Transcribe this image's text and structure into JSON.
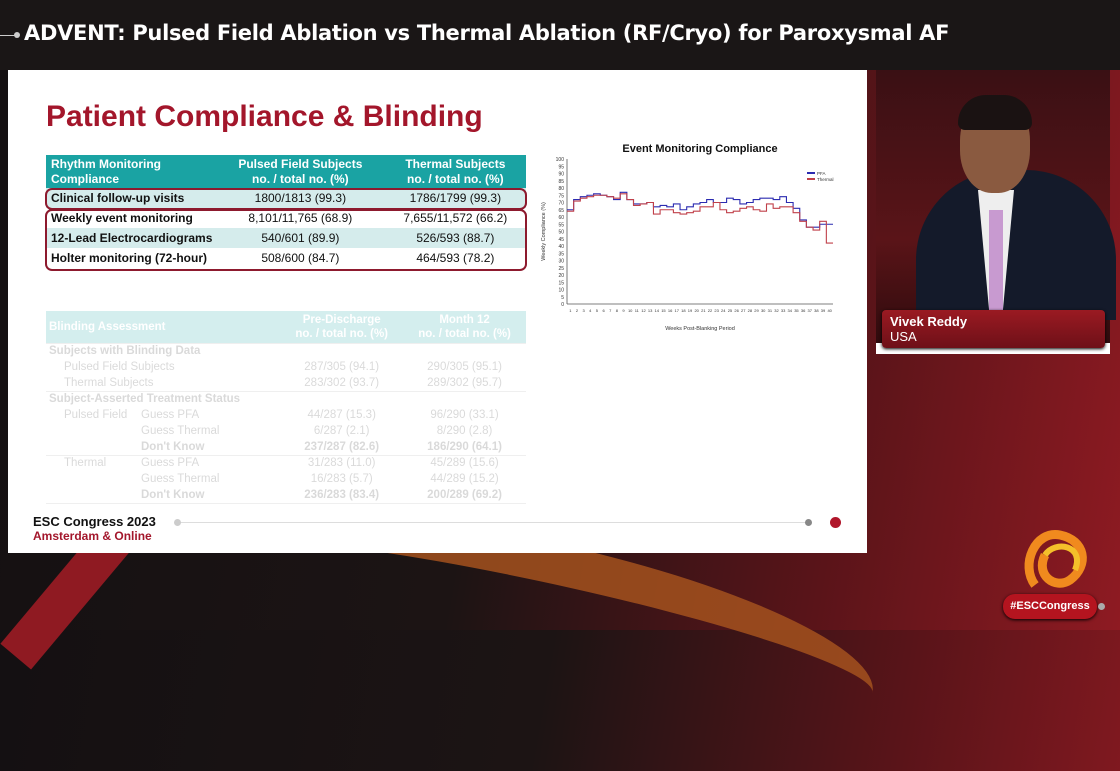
{
  "header": {
    "title": "ADVENT: Pulsed Field Ablation vs Thermal Ablation (RF/Cryo) for Paroxysmal AF"
  },
  "slide": {
    "title": "Patient Compliance & Blinding",
    "compliance_table": {
      "headers": [
        [
          "Rhythm Monitoring",
          "Compliance"
        ],
        [
          "Pulsed Field Subjects",
          "no. / total no. (%)"
        ],
        [
          "Thermal Subjects",
          "no. / total no. (%)"
        ]
      ],
      "rows": [
        [
          "Clinical follow-up visits",
          "1800/1813 (99.3)",
          "1786/1799 (99.3)"
        ],
        [
          "Weekly event monitoring",
          "8,101/11,765 (68.9)",
          "7,655/11,572 (66.2)"
        ],
        [
          "12-Lead Electrocardiograms",
          "540/601 (89.9)",
          "526/593 (88.7)"
        ],
        [
          "Holter monitoring (72-hour)",
          "508/600 (84.7)",
          "464/593 (78.2)"
        ]
      ]
    },
    "blinding_table": {
      "headers": [
        "Blinding Assessment",
        [
          "Pre-Discharge",
          "no. / total no. (%)"
        ],
        [
          "Month 12",
          "no. / total no. (%)"
        ]
      ],
      "section1": "Subjects with Blinding Data",
      "s1rows": [
        [
          "Pulsed Field Subjects",
          "287/305 (94.1)",
          "290/305 (95.1)"
        ],
        [
          "Thermal Subjects",
          "283/302 (93.7)",
          "289/302 (95.7)"
        ]
      ],
      "section2": "Subject-Asserted Treatment Status",
      "groups": [
        {
          "name": "Pulsed Field",
          "rows": [
            [
              "Guess PFA",
              "44/287 (15.3)",
              "96/290 (33.1)"
            ],
            [
              "Guess Thermal",
              "6/287 (2.1)",
              "8/290 (2.8)"
            ],
            [
              "Don't Know",
              "237/287 (82.6)",
              "186/290 (64.1)"
            ]
          ]
        },
        {
          "name": "Thermal",
          "rows": [
            [
              "Guess PFA",
              "31/283 (11.0)",
              "45/289 (15.6)"
            ],
            [
              "Guess Thermal",
              "16/283 (5.7)",
              "44/289 (15.2)"
            ],
            [
              "Don't Know",
              "236/283 (83.4)",
              "200/289 (69.2)"
            ]
          ]
        }
      ]
    },
    "footer": {
      "line1": "ESC Congress 2023",
      "line2": "Amsterdam & Online"
    }
  },
  "chart_data": {
    "type": "line",
    "title": "Event Monitoring Compliance",
    "xlabel": "Weeks Post-Blanking Period",
    "ylabel": "Weekly Compliance (%)",
    "ylim": [
      0,
      100
    ],
    "yticks": [
      0,
      5,
      10,
      15,
      20,
      25,
      30,
      35,
      40,
      45,
      50,
      55,
      60,
      65,
      70,
      75,
      80,
      85,
      90,
      95,
      100
    ],
    "x": [
      1,
      2,
      3,
      4,
      5,
      6,
      7,
      8,
      9,
      10,
      11,
      12,
      13,
      14,
      15,
      16,
      17,
      18,
      19,
      20,
      21,
      22,
      23,
      24,
      25,
      26,
      27,
      28,
      29,
      30,
      31,
      32,
      33,
      34,
      35,
      36,
      37,
      38,
      39,
      40
    ],
    "legend": "top-right",
    "step": true,
    "series": [
      {
        "name": "PFA",
        "color": "#2b2bb0",
        "values": [
          65,
          72,
          74,
          75,
          76,
          75,
          74,
          72,
          77,
          72,
          69,
          69,
          70,
          67,
          68,
          67,
          69,
          65,
          67,
          69,
          70,
          72,
          70,
          70,
          73,
          72,
          69,
          70,
          72,
          73,
          73,
          72,
          74,
          70,
          66,
          58,
          53,
          53,
          55,
          55
        ]
      },
      {
        "name": "Thermal",
        "color": "#c0404a",
        "values": [
          64,
          71,
          73,
          74,
          75,
          75,
          74,
          73,
          76,
          72,
          68,
          69,
          70,
          62,
          65,
          65,
          63,
          62,
          63,
          64,
          67,
          67,
          70,
          65,
          63,
          64,
          66,
          67,
          65,
          64,
          69,
          66,
          67,
          67,
          63,
          57,
          53,
          51,
          57,
          42
        ]
      }
    ]
  },
  "speaker": {
    "name": "Vivek Reddy",
    "country": "USA"
  },
  "branding": {
    "hashtag": "#ESCCongress",
    "accent": "#a3162b",
    "teal": "#1aa3a3"
  }
}
